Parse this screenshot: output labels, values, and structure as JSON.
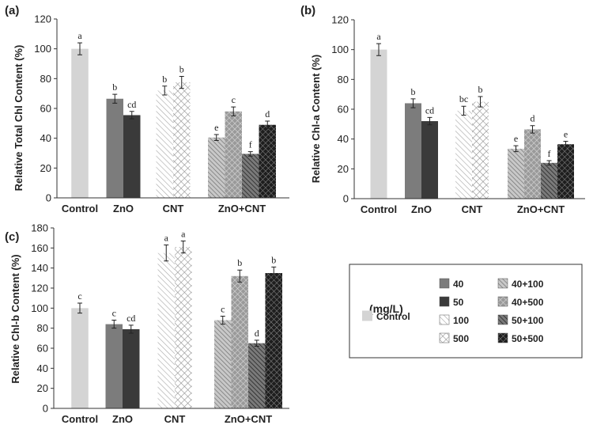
{
  "legend": {
    "unit": "(mg/L)",
    "items": [
      {
        "label": "Control",
        "pattern": "control"
      },
      {
        "label": "40",
        "pattern": "zno40"
      },
      {
        "label": "50",
        "pattern": "zno50"
      },
      {
        "label": "100",
        "pattern": "cnt100"
      },
      {
        "label": "500",
        "pattern": "cnt500"
      },
      {
        "label": "40+100",
        "pattern": "m40_100"
      },
      {
        "label": "40+500",
        "pattern": "m40_500"
      },
      {
        "label": "50+100",
        "pattern": "m50_100"
      },
      {
        "label": "50+500",
        "pattern": "m50_500"
      }
    ]
  },
  "chart_data": [
    {
      "panel": "(a)",
      "type": "bar",
      "ylabel": "Relative Total Chl Content (%)",
      "ylim": [
        0,
        120
      ],
      "yticks": [
        0,
        20,
        40,
        60,
        80,
        100,
        120
      ],
      "categories": [
        "Control",
        "ZnO",
        "CNT",
        "ZnO+CNT"
      ],
      "groups": [
        {
          "category": "Control",
          "bars": [
            {
              "series": "Control",
              "pattern": "control",
              "value": 100,
              "err": 4,
              "sig": "a"
            }
          ]
        },
        {
          "category": "ZnO",
          "bars": [
            {
              "series": "40",
              "pattern": "zno40",
              "value": 66.5,
              "err": 3,
              "sig": "b"
            },
            {
              "series": "50",
              "pattern": "zno50",
              "value": 55.5,
              "err": 2.5,
              "sig": "cd"
            }
          ]
        },
        {
          "category": "CNT",
          "bars": [
            {
              "series": "100",
              "pattern": "cnt100",
              "value": 72,
              "err": 3,
              "sig": "b"
            },
            {
              "series": "500",
              "pattern": "cnt500",
              "value": 77.5,
              "err": 4,
              "sig": "b"
            }
          ]
        },
        {
          "category": "ZnO+CNT",
          "bars": [
            {
              "series": "40+100",
              "pattern": "m40_100",
              "value": 40.5,
              "err": 2,
              "sig": "e"
            },
            {
              "series": "40+500",
              "pattern": "m40_500",
              "value": 58,
              "err": 3,
              "sig": "c"
            },
            {
              "series": "50+100",
              "pattern": "m50_100",
              "value": 29.5,
              "err": 1.5,
              "sig": "f"
            },
            {
              "series": "50+500",
              "pattern": "m50_500",
              "value": 49,
              "err": 2.5,
              "sig": "d"
            }
          ]
        }
      ]
    },
    {
      "panel": "(b)",
      "type": "bar",
      "ylabel": "Relative Chl-a Content (%)",
      "ylim": [
        0,
        120
      ],
      "yticks": [
        0,
        20,
        40,
        60,
        80,
        100,
        120
      ],
      "categories": [
        "Control",
        "ZnO",
        "CNT",
        "ZnO+CNT"
      ],
      "groups": [
        {
          "category": "Control",
          "bars": [
            {
              "series": "Control",
              "pattern": "control",
              "value": 100,
              "err": 4,
              "sig": "a"
            }
          ]
        },
        {
          "category": "ZnO",
          "bars": [
            {
              "series": "40",
              "pattern": "zno40",
              "value": 64,
              "err": 3,
              "sig": "b"
            },
            {
              "series": "50",
              "pattern": "zno50",
              "value": 52,
              "err": 2.5,
              "sig": "cd"
            }
          ]
        },
        {
          "category": "CNT",
          "bars": [
            {
              "series": "100",
              "pattern": "cnt100",
              "value": 59,
              "err": 3,
              "sig": "bc"
            },
            {
              "series": "500",
              "pattern": "cnt500",
              "value": 65,
              "err": 3.5,
              "sig": "b"
            }
          ]
        },
        {
          "category": "ZnO+CNT",
          "bars": [
            {
              "series": "40+100",
              "pattern": "m40_100",
              "value": 33.5,
              "err": 2,
              "sig": "e"
            },
            {
              "series": "40+500",
              "pattern": "m40_500",
              "value": 46.5,
              "err": 2.5,
              "sig": "d"
            },
            {
              "series": "50+100",
              "pattern": "m50_100",
              "value": 24,
              "err": 1.5,
              "sig": "f"
            },
            {
              "series": "50+500",
              "pattern": "m50_500",
              "value": 36.5,
              "err": 2,
              "sig": "e"
            }
          ]
        }
      ]
    },
    {
      "panel": "(c)",
      "type": "bar",
      "ylabel": "Relative Chl-b Content (%)",
      "ylim": [
        0,
        180
      ],
      "yticks": [
        0,
        20,
        40,
        60,
        80,
        100,
        120,
        140,
        160,
        180
      ],
      "categories": [
        "Control",
        "ZnO",
        "CNT",
        "ZnO+CNT"
      ],
      "groups": [
        {
          "category": "Control",
          "bars": [
            {
              "series": "Control",
              "pattern": "control",
              "value": 100,
              "err": 5,
              "sig": "c"
            }
          ]
        },
        {
          "category": "ZnO",
          "bars": [
            {
              "series": "40",
              "pattern": "zno40",
              "value": 84,
              "err": 4,
              "sig": "c"
            },
            {
              "series": "50",
              "pattern": "zno50",
              "value": 79,
              "err": 4,
              "sig": "cd"
            }
          ]
        },
        {
          "category": "CNT",
          "bars": [
            {
              "series": "100",
              "pattern": "cnt100",
              "value": 155,
              "err": 8,
              "sig": "a"
            },
            {
              "series": "500",
              "pattern": "cnt500",
              "value": 161,
              "err": 6,
              "sig": "a"
            }
          ]
        },
        {
          "category": "ZnO+CNT",
          "bars": [
            {
              "series": "40+100",
              "pattern": "m40_100",
              "value": 88,
              "err": 4,
              "sig": "c"
            },
            {
              "series": "40+500",
              "pattern": "m40_500",
              "value": 132,
              "err": 6,
              "sig": "b"
            },
            {
              "series": "50+100",
              "pattern": "m50_100",
              "value": 65,
              "err": 3,
              "sig": "d"
            },
            {
              "series": "50+500",
              "pattern": "m50_500",
              "value": 135,
              "err": 6,
              "sig": "b"
            }
          ]
        }
      ]
    }
  ]
}
